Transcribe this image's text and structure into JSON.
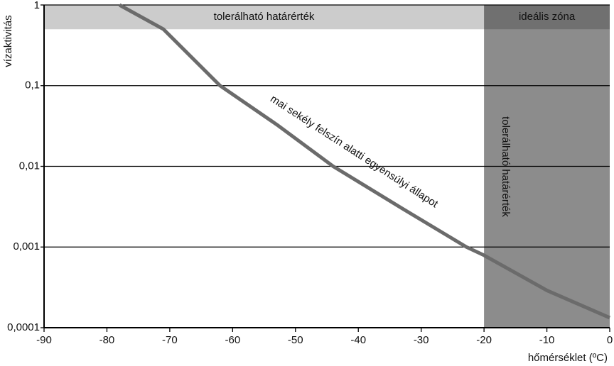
{
  "chart_data": {
    "type": "line",
    "x_label": "hőmérséklet (ºC)",
    "y_label": "vízaktivitás",
    "x": [
      -78,
      -71,
      -62,
      -53,
      -44,
      -33,
      -22.8,
      -20,
      -10,
      0
    ],
    "series": [
      {
        "name": "mai sekély felszín alatti egyensúlyi állapot",
        "color": "#6b6b6b",
        "values": [
          1,
          0.5,
          0.1,
          0.033,
          0.01,
          0.003,
          0.001,
          0.00079,
          0.00029,
          0.000133
        ]
      }
    ],
    "regions": [
      {
        "label": "tolerálható határérték",
        "xlim": [
          -90,
          0
        ],
        "ylim": [
          0.5,
          1
        ],
        "color": "#cccccc"
      },
      {
        "label": "tolerálható határérték",
        "xlim": [
          -20,
          0
        ],
        "ylim": [
          0.0001,
          1
        ],
        "color": "#8c8c8c"
      }
    ],
    "corner_label": "ideális zóna",
    "xlim": [
      -90,
      0
    ],
    "xticks": [
      -90,
      -80,
      -70,
      -60,
      -50,
      -40,
      -30,
      -20,
      -10,
      0
    ],
    "ylim": [
      0.0001,
      1
    ],
    "log_y": true,
    "grid": true,
    "yticks": [
      {
        "value": 0.0001,
        "label": "0,0001"
      },
      {
        "value": 0.001,
        "label": "0,001"
      },
      {
        "value": 0.01,
        "label": "0,01"
      },
      {
        "value": 0.1,
        "label": "0,1"
      },
      1
    ]
  }
}
